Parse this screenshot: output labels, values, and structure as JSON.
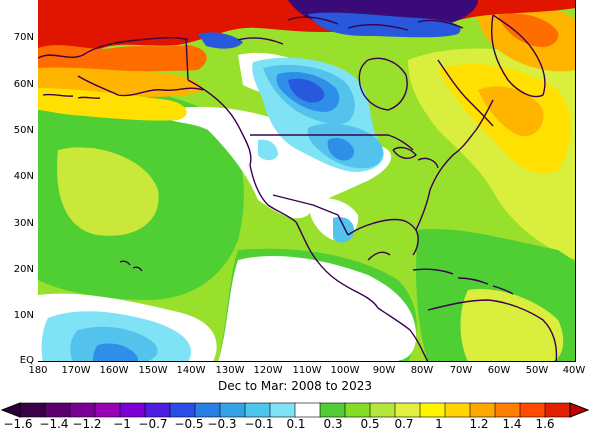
{
  "caption": "Dec to Mar: 2008 to 2023",
  "lat_labels": [
    "70N",
    "60N",
    "50N",
    "40N",
    "30N",
    "20N",
    "10N",
    "EQ"
  ],
  "lon_labels": [
    "180",
    "170W",
    "160W",
    "150W",
    "140W",
    "130W",
    "120W",
    "110W",
    "100W",
    "90W",
    "80W",
    "70W",
    "60W",
    "50W",
    "40W"
  ],
  "colorbar": {
    "labels": [
      "-1.6",
      "-1.4",
      "-1.2",
      "-1",
      "-0.7",
      "-0.5",
      "-0.3",
      "-0.1",
      "0.1",
      "0.3",
      "0.5",
      "0.7",
      "1",
      "1.2",
      "1.4",
      "1.6"
    ],
    "colors": [
      "#3a0048",
      "#5c0070",
      "#7a0095",
      "#9a00b5",
      "#7c00d6",
      "#4b1ee0",
      "#2b4ee8",
      "#2a7ee8",
      "#32a4e6",
      "#4cc6ec",
      "#80e3f5",
      "#ffffff",
      "#4fcf33",
      "#83dd25",
      "#b3e83b",
      "#e4f040",
      "#fff500",
      "#ffd400",
      "#ffa900",
      "#ff7d00",
      "#ff4a00",
      "#e21f00"
    ],
    "left_arrow": "#2a0038",
    "right_arrow": "#c40000"
  },
  "anomaly_palette": {
    "deep_negative": "#3a0a78",
    "negative_strong": "#2858dc",
    "negative_mid": "#2f8ee8",
    "negative_weak": "#53c3ee",
    "negative_faint": "#8fe6f6",
    "neutral": "#ffffff",
    "positive_faint": "#4fcf33",
    "positive_weak": "#99e02c",
    "positive_mid": "#d9ee3d",
    "positive_strong": "#ffe000",
    "positive_high": "#ffb400",
    "positive_very_high": "#ff6c00",
    "max": "#e01500"
  },
  "coastline_color": "#3a0050"
}
